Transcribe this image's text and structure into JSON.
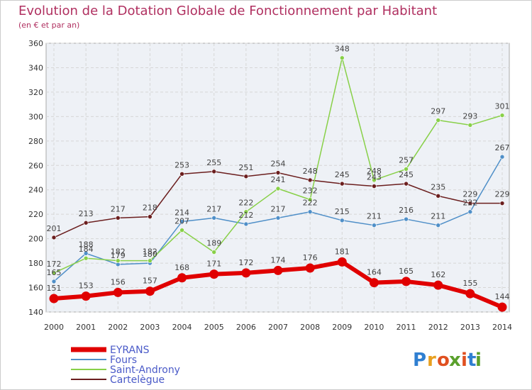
{
  "chart_data": {
    "type": "line",
    "title": "Evolution de la Dotation Globale de Fonctionnement par Habitant",
    "subtitle": "(en € et par an)",
    "x": [
      "2000",
      "2001",
      "2002",
      "2003",
      "2004",
      "2005",
      "2006",
      "2007",
      "2008",
      "2009",
      "2010",
      "2011",
      "2012",
      "2013",
      "2014"
    ],
    "yticks": [
      "140",
      "160",
      "180",
      "200",
      "220",
      "240",
      "260",
      "280",
      "300",
      "320",
      "340",
      "360"
    ],
    "ylim": [
      140,
      360
    ],
    "grid": true,
    "legend_position": "bottom-left",
    "series": [
      {
        "name": "EYRANS",
        "color": "#e00000",
        "values": [
          151,
          153,
          156,
          157,
          168,
          171,
          172,
          174,
          176,
          181,
          164,
          165,
          162,
          155,
          144
        ]
      },
      {
        "name": "Fours",
        "color": "#4f8fc8",
        "values": [
          165,
          188,
          179,
          180,
          214,
          217,
          212,
          217,
          222,
          215,
          211,
          216,
          211,
          222,
          267
        ]
      },
      {
        "name": "Saint-Androny",
        "color": "#88d048",
        "values": [
          172,
          184,
          182,
          182,
          207,
          189,
          222,
          241,
          232,
          348,
          248,
          257,
          297,
          293,
          301
        ]
      },
      {
        "name": "Cartelègue",
        "color": "#6b1e1e",
        "values": [
          201,
          213,
          217,
          218,
          253,
          255,
          251,
          254,
          248,
          245,
          243,
          245,
          235,
          229,
          229
        ]
      }
    ]
  },
  "logo": {
    "text": "Proxiti",
    "letters": [
      "P",
      "r",
      "o",
      "x",
      "i",
      "t",
      "i"
    ],
    "colors": [
      "#2f7fd1",
      "#e8a020",
      "#e05020",
      "#5aa02c",
      "#e05020",
      "#2f7fd1",
      "#5aa02c"
    ]
  }
}
